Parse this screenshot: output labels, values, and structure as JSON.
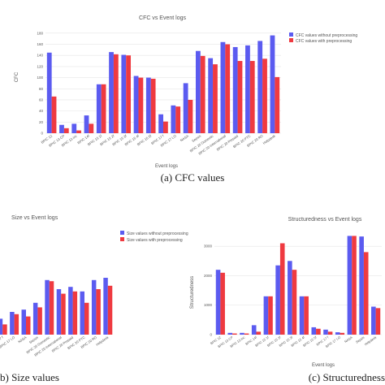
{
  "colors": {
    "without": "#5b5bf0",
    "with": "#ef3a40",
    "grid": "#e6e6e6",
    "text": "#555555"
  },
  "captions": {
    "a": "(a) CFC values",
    "b": "b) Size values",
    "c": "(c) Structuredness"
  },
  "chart_data": [
    {
      "type": "bar",
      "title": "CFC vs Event logs",
      "xlabel": "Event logs",
      "ylabel": "CFC",
      "ylim": [
        0,
        190
      ],
      "yticks": [
        0,
        20,
        40,
        60,
        80,
        100,
        120,
        140,
        160,
        180
      ],
      "legend_position": "top-right",
      "grid": true,
      "categories": [
        "BPIC 12",
        "BPIC 13 CP",
        "BPIC 13 inc",
        "BPIC 14f",
        "BPIC 15 1f",
        "BPIC 15 2f",
        "BPIC 15 3f",
        "BPIC 15 4f",
        "BPIC 15 5f",
        "BPIC 17 f",
        "BPIC 17 LO",
        "NASA",
        "Sepsis",
        "BPIC 20 Domestic",
        "BPIC 20 International",
        "BPIC 20 Prepaid",
        "BPIC 20 PTC",
        "BPIC 20 RD",
        "Helpdesk"
      ],
      "series": [
        {
          "name": "CFC values without preprocessing",
          "values": [
            145,
            15,
            17,
            32,
            88,
            146,
            141,
            103,
            100,
            34,
            50,
            90,
            148,
            135,
            164,
            155,
            158,
            166,
            176
          ]
        },
        {
          "name": "CFC values with preprocessing",
          "values": [
            66,
            9,
            5,
            17,
            88,
            142,
            140,
            100,
            98,
            21,
            48,
            60,
            139,
            124,
            160,
            130,
            130,
            134,
            101
          ]
        }
      ]
    },
    {
      "type": "bar",
      "title": "Size vs Event logs",
      "xlabel": "",
      "ylabel": "",
      "ylim": [
        0,
        80
      ],
      "legend_position": "top-center",
      "grid": true,
      "categories": [
        "BPIC 17 f",
        "BPIC 17 LO",
        "NASA",
        "Sepsis",
        "BPIC 20 Domestic",
        "BPIC 20 International",
        "BPIC 20 Prepaid",
        "BPIC 20 PTC",
        "BPIC 20 RD",
        "Helpdesk"
      ],
      "series": [
        {
          "name": "Size values without preprocessing",
          "values": [
            14,
            20,
            22,
            28,
            48,
            40,
            42,
            38,
            48,
            50
          ]
        },
        {
          "name": "Size values with preprocessing",
          "values": [
            9,
            18,
            16,
            24,
            47,
            36,
            38,
            28,
            40,
            43
          ]
        }
      ]
    },
    {
      "type": "bar",
      "title": "Structuredness vs Event logs",
      "xlabel": "Event logs",
      "ylabel": "Structuredness",
      "ylim": [
        0,
        3500
      ],
      "yticks": [
        0,
        1000,
        2000,
        3000
      ],
      "grid": true,
      "categories": [
        "BPIC 12",
        "BPIC 13 CP",
        "BPIC 13 inc",
        "BPIC 14f",
        "BPIC 15 1f",
        "BPIC 15 2f",
        "BPIC 15 3f",
        "BPIC 15 4f",
        "BPIC 15 5f",
        "BPIC 17 f",
        "BPIC 17 LO",
        "NASA",
        "Sepsis",
        "Helpdesk"
      ],
      "series": [
        {
          "name": "without preprocessing",
          "values": [
            2200,
            60,
            60,
            320,
            1300,
            2350,
            2500,
            1300,
            250,
            170,
            80,
            3350,
            3330,
            950
          ]
        },
        {
          "name": "with preprocessing",
          "values": [
            2100,
            40,
            40,
            100,
            1300,
            3100,
            2200,
            1300,
            200,
            100,
            60,
            3350,
            2800,
            900
          ]
        }
      ]
    }
  ]
}
